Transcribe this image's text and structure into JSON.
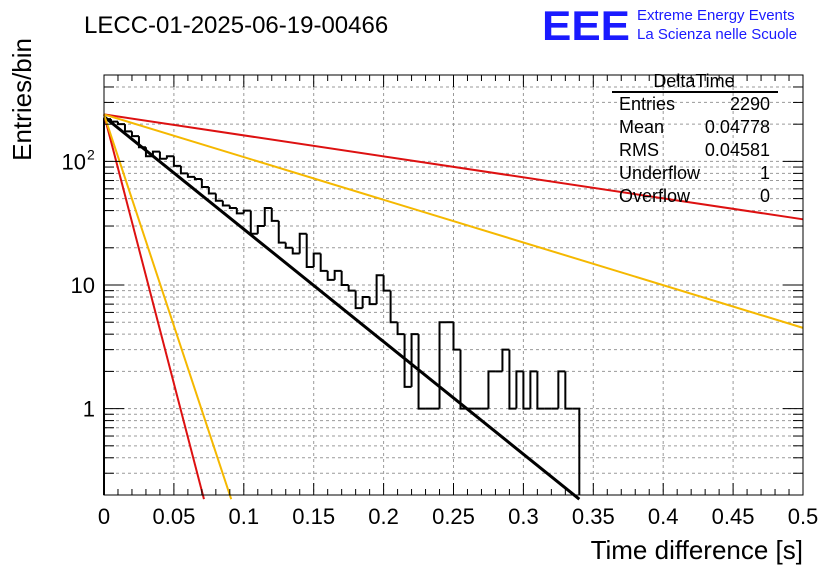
{
  "header": {
    "run_title": "LECC-01-2025-06-19-00466",
    "logo_text": "EEE",
    "logo_line1": "Extreme Energy Events",
    "logo_line2": "La Scienza nelle Scuole"
  },
  "stats": {
    "title": "DeltaTime",
    "rows": [
      {
        "label": "Entries",
        "value": "2290"
      },
      {
        "label": "Mean",
        "value": "0.04778"
      },
      {
        "label": "RMS",
        "value": "0.04581"
      },
      {
        "label": "Underflow",
        "value": "1"
      },
      {
        "label": "Overflow",
        "value": "0"
      }
    ]
  },
  "chart_data": {
    "type": "histogram",
    "title": "LECC-01-2025-06-19-00466",
    "xlabel": "Time difference [s]",
    "ylabel": "Entries/bin",
    "xlim": [
      0,
      0.5
    ],
    "ylim": [
      0.2,
      500
    ],
    "yscale": "log",
    "grid": true,
    "x_ticks": [
      "0",
      "0.05",
      "0.1",
      "0.15",
      "0.2",
      "0.25",
      "0.3",
      "0.35",
      "0.4",
      "0.45",
      "0.5"
    ],
    "y_ticks": [
      "1",
      "10",
      "10^2"
    ],
    "bin_width": 0.005,
    "histogram": {
      "color": "#000000",
      "bins": [
        {
          "x": 0.0,
          "y": 220
        },
        {
          "x": 0.005,
          "y": 210
        },
        {
          "x": 0.01,
          "y": 200
        },
        {
          "x": 0.015,
          "y": 175
        },
        {
          "x": 0.02,
          "y": 160
        },
        {
          "x": 0.025,
          "y": 130
        },
        {
          "x": 0.03,
          "y": 110
        },
        {
          "x": 0.035,
          "y": 120
        },
        {
          "x": 0.04,
          "y": 105
        },
        {
          "x": 0.045,
          "y": 110
        },
        {
          "x": 0.05,
          "y": 92
        },
        {
          "x": 0.055,
          "y": 80
        },
        {
          "x": 0.06,
          "y": 75
        },
        {
          "x": 0.065,
          "y": 72
        },
        {
          "x": 0.07,
          "y": 62
        },
        {
          "x": 0.075,
          "y": 55
        },
        {
          "x": 0.08,
          "y": 48
        },
        {
          "x": 0.085,
          "y": 44
        },
        {
          "x": 0.09,
          "y": 42
        },
        {
          "x": 0.095,
          "y": 38
        },
        {
          "x": 0.1,
          "y": 40
        },
        {
          "x": 0.105,
          "y": 26
        },
        {
          "x": 0.11,
          "y": 30
        },
        {
          "x": 0.115,
          "y": 42
        },
        {
          "x": 0.12,
          "y": 33
        },
        {
          "x": 0.125,
          "y": 22
        },
        {
          "x": 0.13,
          "y": 20
        },
        {
          "x": 0.135,
          "y": 18
        },
        {
          "x": 0.14,
          "y": 26
        },
        {
          "x": 0.145,
          "y": 14
        },
        {
          "x": 0.15,
          "y": 18
        },
        {
          "x": 0.155,
          "y": 13
        },
        {
          "x": 0.16,
          "y": 11
        },
        {
          "x": 0.165,
          "y": 13
        },
        {
          "x": 0.17,
          "y": 10
        },
        {
          "x": 0.175,
          "y": 9
        },
        {
          "x": 0.18,
          "y": 6.5
        },
        {
          "x": 0.185,
          "y": 8
        },
        {
          "x": 0.19,
          "y": 7
        },
        {
          "x": 0.195,
          "y": 12
        },
        {
          "x": 0.2,
          "y": 9
        },
        {
          "x": 0.205,
          "y": 5
        },
        {
          "x": 0.21,
          "y": 4
        },
        {
          "x": 0.215,
          "y": 1.5
        },
        {
          "x": 0.22,
          "y": 4
        },
        {
          "x": 0.225,
          "y": 1
        },
        {
          "x": 0.23,
          "y": 1
        },
        {
          "x": 0.235,
          "y": 1
        },
        {
          "x": 0.24,
          "y": 5
        },
        {
          "x": 0.245,
          "y": 5
        },
        {
          "x": 0.25,
          "y": 3
        },
        {
          "x": 0.255,
          "y": 1
        },
        {
          "x": 0.26,
          "y": 1
        },
        {
          "x": 0.265,
          "y": 1
        },
        {
          "x": 0.27,
          "y": 1
        },
        {
          "x": 0.275,
          "y": 2
        },
        {
          "x": 0.28,
          "y": 2
        },
        {
          "x": 0.285,
          "y": 3
        },
        {
          "x": 0.29,
          "y": 1
        },
        {
          "x": 0.295,
          "y": 2
        },
        {
          "x": 0.3,
          "y": 1
        },
        {
          "x": 0.305,
          "y": 2
        },
        {
          "x": 0.31,
          "y": 1
        },
        {
          "x": 0.315,
          "y": 1
        },
        {
          "x": 0.32,
          "y": 1
        },
        {
          "x": 0.325,
          "y": 2
        },
        {
          "x": 0.33,
          "y": 1
        },
        {
          "x": 0.335,
          "y": 1
        }
      ]
    },
    "fits": [
      {
        "color": "#000000",
        "x": [
          0.0,
          0.34
        ],
        "y": [
          230,
          0.185
        ]
      },
      {
        "color": "#dd1111",
        "x": [
          0.0,
          0.5
        ],
        "y": [
          240,
          34
        ]
      },
      {
        "color": "#f5b800",
        "x": [
          0.0,
          0.5
        ],
        "y": [
          240,
          4.5
        ]
      },
      {
        "color": "#dd1111",
        "x": [
          0.0,
          0.0715
        ],
        "y": [
          240,
          0.185
        ]
      },
      {
        "color": "#f5b800",
        "x": [
          0.0,
          0.091
        ],
        "y": [
          240,
          0.185
        ]
      }
    ]
  }
}
